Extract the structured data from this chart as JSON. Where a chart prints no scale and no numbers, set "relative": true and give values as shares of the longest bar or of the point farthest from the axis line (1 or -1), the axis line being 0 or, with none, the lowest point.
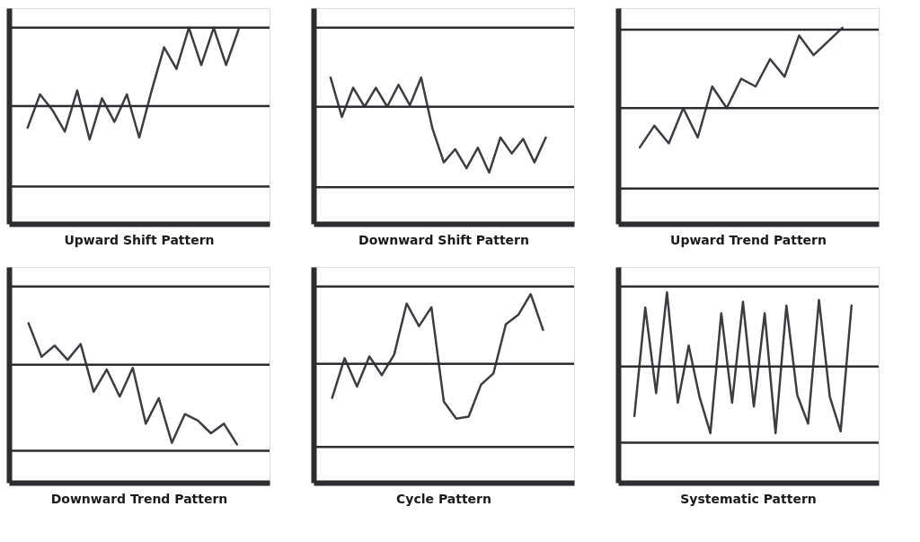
{
  "chart_data": [
    {
      "type": "line",
      "title": "Upward Shift Pattern",
      "relative": true,
      "categories": [
        null,
        null,
        null,
        null,
        null,
        null,
        null,
        null,
        null,
        null,
        null,
        null,
        null,
        null,
        null,
        null,
        null,
        null
      ],
      "series": [
        {
          "color": "#3a3d42",
          "values": [
            0.49,
            0.66,
            0.58,
            0.47,
            0.68,
            0.43,
            0.64,
            0.52,
            0.66,
            0.44,
            0.68,
            0.9,
            0.79,
            1.0,
            0.81,
            1.0,
            0.81,
            0.99
          ]
        }
      ],
      "ref_lines": [
        {
          "axis": "y",
          "value": 1.0,
          "color": "#2b2d31"
        },
        {
          "axis": "y",
          "value": 0.6,
          "color": "#2b2d31"
        },
        {
          "axis": "y",
          "value": 0.19,
          "color": "#2b2d31"
        }
      ],
      "grid": false,
      "tick_labels": false
    },
    {
      "type": "line",
      "title": "Downward Shift Pattern",
      "relative": true,
      "categories": [
        null,
        null,
        null,
        null,
        null,
        null,
        null,
        null,
        null,
        null,
        null,
        null,
        null,
        null,
        null,
        null,
        null,
        null,
        null,
        null
      ],
      "series": [
        {
          "color": "#3a3d42",
          "values": [
            1.0,
            0.73,
            0.93,
            0.8,
            0.93,
            0.8,
            0.95,
            0.81,
            1.0,
            0.65,
            0.42,
            0.51,
            0.38,
            0.52,
            0.35,
            0.59,
            0.48,
            0.58,
            0.42,
            0.59
          ]
        }
      ],
      "ref_lines": [
        {
          "axis": "y",
          "value": 1.34,
          "color": "#2b2d31"
        },
        {
          "axis": "y",
          "value": 0.8,
          "color": "#2b2d31"
        },
        {
          "axis": "y",
          "value": 0.25,
          "color": "#2b2d31"
        }
      ],
      "grid": false,
      "tick_labels": false
    },
    {
      "type": "line",
      "title": "Upward Trend Pattern",
      "relative": true,
      "categories": [
        null,
        null,
        null,
        null,
        null,
        null,
        null,
        null,
        null,
        null,
        null,
        null,
        null,
        null,
        null
      ],
      "series": [
        {
          "color": "#3a3d42",
          "values": [
            0.39,
            0.5,
            0.41,
            0.59,
            0.44,
            0.7,
            0.59,
            0.74,
            0.7,
            0.84,
            0.75,
            0.96,
            0.86,
            0.93,
            1.0
          ]
        }
      ],
      "ref_lines": [
        {
          "axis": "y",
          "value": 0.99,
          "color": "#2b2d31"
        },
        {
          "axis": "y",
          "value": 0.59,
          "color": "#2b2d31"
        },
        {
          "axis": "y",
          "value": 0.18,
          "color": "#2b2d31"
        }
      ],
      "grid": false,
      "tick_labels": false
    },
    {
      "type": "line",
      "title": "Downward Trend Pattern",
      "relative": true,
      "categories": [
        null,
        null,
        null,
        null,
        null,
        null,
        null,
        null,
        null,
        null,
        null,
        null,
        null,
        null,
        null,
        null,
        null
      ],
      "series": [
        {
          "color": "#3a3d42",
          "values": [
            1.0,
            0.79,
            0.86,
            0.77,
            0.87,
            0.57,
            0.71,
            0.54,
            0.72,
            0.37,
            0.53,
            0.25,
            0.43,
            0.39,
            0.31,
            0.37,
            0.24
          ]
        }
      ],
      "ref_lines": [
        {
          "axis": "y",
          "value": 1.23,
          "color": "#2b2d31"
        },
        {
          "axis": "y",
          "value": 0.74,
          "color": "#2b2d31"
        },
        {
          "axis": "y",
          "value": 0.2,
          "color": "#2b2d31"
        }
      ],
      "grid": false,
      "tick_labels": false
    },
    {
      "type": "line",
      "title": "Cycle Pattern",
      "relative": true,
      "categories": [
        null,
        null,
        null,
        null,
        null,
        null,
        null,
        null,
        null,
        null,
        null,
        null,
        null,
        null,
        null,
        null,
        null,
        null
      ],
      "series": [
        {
          "color": "#3a3d42",
          "values": [
            0.45,
            0.66,
            0.51,
            0.67,
            0.57,
            0.68,
            0.95,
            0.83,
            0.93,
            0.43,
            0.34,
            0.35,
            0.52,
            0.58,
            0.84,
            0.89,
            1.0,
            0.81
          ]
        }
      ],
      "ref_lines": [
        {
          "axis": "y",
          "value": 1.04,
          "color": "#2b2d31"
        },
        {
          "axis": "y",
          "value": 0.63,
          "color": "#2b2d31"
        },
        {
          "axis": "y",
          "value": 0.19,
          "color": "#2b2d31"
        }
      ],
      "grid": false,
      "tick_labels": false
    },
    {
      "type": "line",
      "title": "Systematic Pattern",
      "relative": true,
      "categories": [
        null,
        null,
        null,
        null,
        null,
        null,
        null,
        null,
        null,
        null,
        null,
        null,
        null,
        null,
        null,
        null,
        null,
        null,
        null,
        null,
        null
      ],
      "series": [
        {
          "color": "#3a3d42",
          "values": [
            0.35,
            0.92,
            0.47,
            1.0,
            0.42,
            0.72,
            0.45,
            0.26,
            0.89,
            0.42,
            0.95,
            0.4,
            0.89,
            0.26,
            0.93,
            0.46,
            0.31,
            0.96,
            0.45,
            0.27,
            0.93
          ]
        }
      ],
      "ref_lines": [
        {
          "axis": "y",
          "value": 1.03,
          "color": "#2b2d31"
        },
        {
          "axis": "y",
          "value": 0.61,
          "color": "#2b2d31"
        },
        {
          "axis": "y",
          "value": 0.21,
          "color": "#2b2d31"
        }
      ],
      "grid": false,
      "tick_labels": false
    }
  ]
}
